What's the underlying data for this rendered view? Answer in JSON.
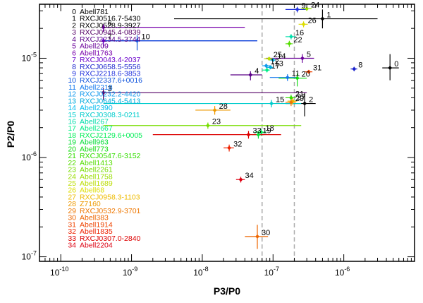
{
  "chart_data": {
    "type": "scatter",
    "title": "",
    "xlabel": "P3/P0",
    "ylabel": "P2/P0",
    "xscale": "log",
    "yscale": "log",
    "xlim": [
      5e-11,
      1e-05
    ],
    "ylim": [
      9e-08,
      3.5e-05
    ],
    "x_ticks": [
      {
        "value": 1e-10,
        "mantissa": "10",
        "exp": "-10"
      },
      {
        "value": 1e-09,
        "mantissa": "10",
        "exp": "-9"
      },
      {
        "value": 1e-08,
        "mantissa": "10",
        "exp": "-8"
      },
      {
        "value": 1e-07,
        "mantissa": "10",
        "exp": "-7"
      },
      {
        "value": 1e-06,
        "mantissa": "10",
        "exp": "-6"
      }
    ],
    "y_ticks": [
      {
        "value": 1e-07,
        "mantissa": "10",
        "exp": "-7"
      },
      {
        "value": 1e-06,
        "mantissa": "10",
        "exp": "-6"
      },
      {
        "value": 1e-05,
        "mantissa": "10",
        "exp": "-5"
      }
    ],
    "reference_lines_x": [
      7e-08,
      2e-07
    ],
    "clusters": [
      {
        "id": "0",
        "name": "Abell781",
        "color": "#000000",
        "x": 4.5e-06,
        "y": 8e-06,
        "xerr": [
          3.5e-06,
          6e-06
        ],
        "yerr": [
          6e-06,
          1.1e-05
        ]
      },
      {
        "id": "1",
        "name": "RXCJ0516.7-5430",
        "color": "#000000",
        "x": 5e-07,
        "y": 2.5e-05,
        "xerr": [
          4e-09,
          3e-06
        ],
        "yerr": [
          2e-05,
          3.1e-05
        ]
      },
      {
        "id": "2",
        "name": "RXCJ0528.9-3927",
        "color": "#000000",
        "x": 2.8e-07,
        "y": 3.5e-06,
        "xerr": [
          1.5e-07,
          4e-07
        ],
        "yerr": [
          2.6e-06,
          4.5e-06
        ]
      },
      {
        "id": "3",
        "name": "RXCJ0945.4-0839",
        "color": "#550066",
        "x": 4e-10,
        "y": 4.5e-06,
        "xerr": [
          4e-10,
          3e-07
        ],
        "yerr": [
          3.8e-06,
          5e-06
        ]
      },
      {
        "id": "4",
        "name": "RXCJ2234.5-3744",
        "color": "#5a0088",
        "x": 4.8e-08,
        "y": 6.8e-06,
        "xerr": [
          2.5e-08,
          7e-08
        ],
        "yerr": [
          6e-06,
          7.4e-06
        ]
      },
      {
        "id": "5",
        "name": "Abell209",
        "color": "#6a0099",
        "x": 2.6e-07,
        "y": 1e-05,
        "xerr": [
          8e-08,
          3.8e-07
        ],
        "yerr": [
          9e-06,
          1.1e-05
        ]
      },
      {
        "id": "6",
        "name": "Abell1763",
        "color": "#7700aa",
        "x": 4e-10,
        "y": 2.05e-05,
        "xerr": [
          4e-10,
          4e-08
        ],
        "yerr": [
          1.85e-05,
          2.2e-05
        ]
      },
      {
        "id": "7",
        "name": "RXCJ0043.4-2037",
        "color": "#6a00cc",
        "x": 4e-10,
        "y": 1.5e-05,
        "xerr": [
          4e-10,
          6e-08
        ],
        "yerr": [
          1.3e-05,
          1.6e-05
        ]
      },
      {
        "id": "8",
        "name": "RXCJ0658.5-5556",
        "color": "#1a22cc",
        "x": 1.4e-06,
        "y": 7.8e-06,
        "xerr": [
          1.25e-06,
          1.55e-06
        ],
        "yerr": [
          7.4e-06,
          8.2e-06
        ]
      },
      {
        "id": "9",
        "name": "RXCJ2218.6-3853",
        "color": "#2233dd",
        "x": 2.2e-07,
        "y": 3.1e-05,
        "xerr": [
          1.5e-07,
          3e-07
        ],
        "yerr": [
          2.9e-05,
          3.3e-05
        ]
      },
      {
        "id": "10",
        "name": "RXCJ2337.6+0016",
        "color": "#1155dd",
        "x": 1.2e-09,
        "y": 1.5e-05,
        "xerr": [
          4e-10,
          6e-08
        ],
        "yerr": [
          1.2e-05,
          1.7e-05
        ]
      },
      {
        "id": "11",
        "name": "Abell2218",
        "color": "#1177ee",
        "x": 1.6e-07,
        "y": 6.4e-06,
        "xerr": [
          9e-08,
          2.2e-07
        ],
        "yerr": [
          5.9e-06,
          6.9e-06
        ]
      },
      {
        "id": "12",
        "name": "RXCJ0232.2-4420",
        "color": "#1199ee",
        "x": 8e-08,
        "y": 8.4e-06,
        "xerr": [
          7e-08,
          9.5e-08
        ],
        "yerr": [
          8e-06,
          8.8e-06
        ]
      },
      {
        "id": "13",
        "name": "RXCJ0645.4-5413",
        "color": "#00aadd",
        "x": 9.2e-08,
        "y": 8.1e-06,
        "xerr": [
          8e-08,
          1e-07
        ],
        "yerr": [
          7.8e-06,
          8.4e-06
        ]
      },
      {
        "id": "14",
        "name": "Abell2390",
        "color": "#00bbee",
        "x": 1e-07,
        "y": 9.6e-06,
        "xerr": [
          9e-08,
          1.1e-07
        ],
        "yerr": [
          9.2e-06,
          1e-05
        ]
      },
      {
        "id": "15",
        "name": "RXCJ0308.3-0211",
        "color": "#00cccc",
        "x": 9.5e-08,
        "y": 3.5e-06,
        "xerr": [
          4e-10,
          2.5e-07
        ],
        "yerr": [
          3.2e-06,
          3.8e-06
        ]
      },
      {
        "id": "16",
        "name": "Abell267",
        "color": "#00ddaa",
        "x": 1.8e-07,
        "y": 1.65e-05,
        "xerr": [
          1.5e-07,
          2.1e-07
        ],
        "yerr": [
          1.55e-05,
          1.75e-05
        ]
      },
      {
        "id": "17",
        "name": "Abell2667",
        "color": "#00ee88",
        "x": 8.2e-08,
        "y": 7.6e-06,
        "xerr": [
          7e-08,
          9e-08
        ],
        "yerr": [
          7.2e-06,
          8e-06
        ]
      },
      {
        "id": "18",
        "name": "RXCJ2129.6+0005",
        "color": "#00ee55",
        "x": 6.8e-08,
        "y": 1.8e-06,
        "xerr": [
          5.5e-08,
          8e-08
        ],
        "yerr": [
          1.65e-06,
          1.95e-06
        ]
      },
      {
        "id": "19",
        "name": "Abell963",
        "color": "#00dd33",
        "x": 6.2e-08,
        "y": 1.7e-06,
        "xerr": [
          5e-08,
          7.5e-08
        ],
        "yerr": [
          1.55e-06,
          1.85e-06
        ]
      },
      {
        "id": "20",
        "name": "Abell773",
        "color": "#11dd11",
        "x": 2.2e-07,
        "y": 6.3e-06,
        "xerr": [
          1.2e-07,
          3e-07
        ],
        "yerr": [
          5.2e-06,
          7e-06
        ]
      },
      {
        "id": "21",
        "name": "RXCJ0547.6-3152",
        "color": "#33dd00",
        "x": 1.8e-07,
        "y": 4e-06,
        "xerr": [
          1.5e-07,
          2.1e-07
        ],
        "yerr": [
          3.7e-06,
          4.3e-06
        ]
      },
      {
        "id": "22",
        "name": "Abell1413",
        "color": "#55dd00",
        "x": 1.7e-07,
        "y": 1.4e-05,
        "xerr": [
          1.5e-07,
          1.9e-07
        ],
        "yerr": [
          1.3e-05,
          1.5e-05
        ]
      },
      {
        "id": "23",
        "name": "Abell2261",
        "color": "#77dd00",
        "x": 1.2e-08,
        "y": 2.1e-06,
        "xerr": [
          4e-10,
          2.5e-07
        ],
        "yerr": [
          1.95e-06,
          2.25e-06
        ]
      },
      {
        "id": "24",
        "name": "Abell1758",
        "color": "#99dd00",
        "x": 3e-07,
        "y": 3.15e-05,
        "xerr": [
          2.5e-07,
          3.5e-07
        ],
        "yerr": [
          3e-05,
          3.3e-05
        ]
      },
      {
        "id": "25",
        "name": "Abell1689",
        "color": "#bbdd00",
        "x": 8.8e-08,
        "y": 9.9e-06,
        "xerr": [
          7.5e-08,
          1e-07
        ],
        "yerr": [
          9.5e-06,
          1.03e-05
        ]
      },
      {
        "id": "26",
        "name": "Abell68",
        "color": "#dddd00",
        "x": 2.7e-07,
        "y": 2.2e-05,
        "xerr": [
          2.3e-07,
          3.1e-07
        ],
        "yerr": [
          2.05e-05,
          2.35e-05
        ]
      },
      {
        "id": "27",
        "name": "RXCJ0958.3-1103",
        "color": "#eebb00",
        "x": 1.9e-07,
        "y": 3.7e-06,
        "xerr": [
          1.6e-07,
          2.2e-07
        ],
        "yerr": [
          3.4e-06,
          4e-06
        ]
      },
      {
        "id": "28",
        "name": "Z7160",
        "color": "#ee9900",
        "x": 1.5e-08,
        "y": 3e-06,
        "xerr": [
          8e-09,
          2.5e-08
        ],
        "yerr": [
          2.7e-06,
          3.3e-06
        ]
      },
      {
        "id": "29",
        "name": "RXCJ0532.9-3701",
        "color": "#ee7700",
        "x": 1.8e-07,
        "y": 3.6e-06,
        "xerr": [
          1.5e-07,
          2.1e-07
        ],
        "yerr": [
          3.3e-06,
          3.9e-06
        ]
      },
      {
        "id": "30",
        "name": "Abell383",
        "color": "#ee6600",
        "x": 6e-08,
        "y": 1.6e-07,
        "xerr": [
          4e-08,
          8.5e-08
        ],
        "yerr": [
          1.2e-07,
          2.1e-07
        ]
      },
      {
        "id": "31",
        "name": "Abell1914",
        "color": "#ee4400",
        "x": 3.2e-07,
        "y": 7.3e-06,
        "xerr": [
          2.8e-07,
          3.6e-07
        ],
        "yerr": [
          7e-06,
          7.6e-06
        ]
      },
      {
        "id": "32",
        "name": "Abell1835",
        "color": "#ee2200",
        "x": 2.4e-08,
        "y": 1.25e-06,
        "xerr": [
          2e-08,
          2.8e-08
        ],
        "yerr": [
          1.15e-06,
          1.35e-06
        ]
      },
      {
        "id": "33",
        "name": "RXCJ0307.0-2840",
        "color": "#dd0000",
        "x": 4.5e-08,
        "y": 1.7e-06,
        "xerr": [
          2e-09,
          1.3e-07
        ],
        "yerr": [
          1.55e-06,
          1.85e-06
        ]
      },
      {
        "id": "34",
        "name": "Abell2204",
        "color": "#dd0011",
        "x": 3.5e-08,
        "y": 6e-07,
        "xerr": [
          3e-08,
          4e-08
        ],
        "yerr": [
          5.6e-07,
          6.4e-07
        ]
      }
    ]
  }
}
